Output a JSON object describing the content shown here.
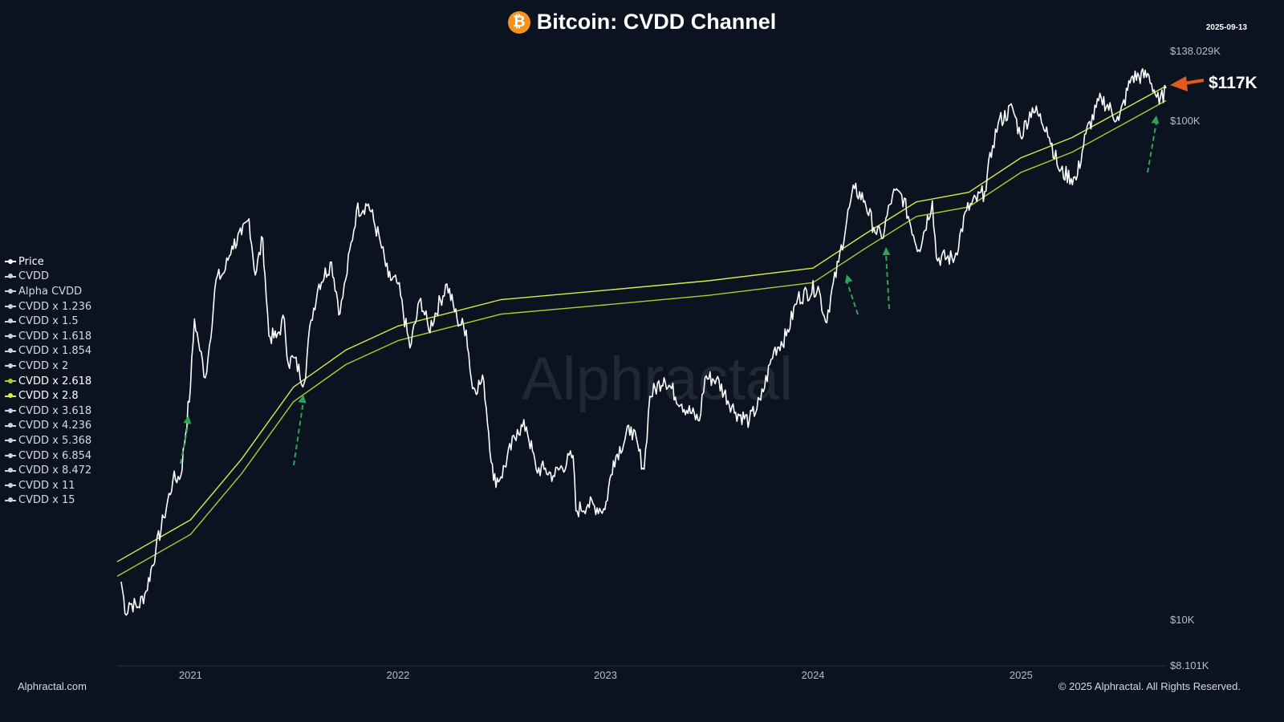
{
  "title": "Bitcoin: CVDD Channel",
  "date": "2025-09-13",
  "watermark": "Alphractal",
  "footer_left": "Alphractal.com",
  "footer_right": "© 2025 Alphractal. All Rights Reserved.",
  "callout": {
    "label": "$117K",
    "color": "#e0591f"
  },
  "colors": {
    "background": "#0b1320",
    "price": "#ffffff",
    "cvdd_2_618": "#a6d22e",
    "cvdd_2_8": "#d9ec4a",
    "annotation_arrows": "#2fa35a",
    "bitcoin": "#f7931a"
  },
  "legend": [
    {
      "label": "Price",
      "active": true,
      "color": "#ffffff"
    },
    {
      "label": "CVDD",
      "active": false
    },
    {
      "label": "Alpha CVDD",
      "active": false
    },
    {
      "label": "CVDD x 1.236",
      "active": false
    },
    {
      "label": "CVDD x 1.5",
      "active": false
    },
    {
      "label": "CVDD x 1.618",
      "active": false
    },
    {
      "label": "CVDD x 1.854",
      "active": false
    },
    {
      "label": "CVDD x 2",
      "active": false
    },
    {
      "label": "CVDD x 2.618",
      "active": true,
      "color": "#a6d22e"
    },
    {
      "label": "CVDD x 2.8",
      "active": true,
      "color": "#d9ec4a"
    },
    {
      "label": "CVDD x 3.618",
      "active": false
    },
    {
      "label": "CVDD x 4.236",
      "active": false
    },
    {
      "label": "CVDD x 5.368",
      "active": false
    },
    {
      "label": "CVDD x 6.854",
      "active": false
    },
    {
      "label": "CVDD x 8.472",
      "active": false
    },
    {
      "label": "CVDD x 11",
      "active": false
    },
    {
      "label": "CVDD x 15",
      "active": false
    }
  ],
  "chart_data": {
    "type": "line",
    "y_scale": "log",
    "ylim": [
      8101,
      138029
    ],
    "xlim": [
      "2020-08-25",
      "2025-09-13"
    ],
    "y_ticks": [
      {
        "value": 138029,
        "label": "$138.029K"
      },
      {
        "value": 100000,
        "label": "$100K"
      },
      {
        "value": 10000,
        "label": "$10K"
      },
      {
        "value": 8101,
        "label": "$8.101K"
      }
    ],
    "x_ticks": [
      "2021",
      "2022",
      "2023",
      "2024",
      "2025"
    ],
    "series": [
      {
        "name": "Price",
        "values": [
          [
            "2020-09-01",
            11900
          ],
          [
            "2020-09-10",
            10200
          ],
          [
            "2020-09-15",
            10800
          ],
          [
            "2020-10-01",
            10600
          ],
          [
            "2020-10-15",
            11400
          ],
          [
            "2020-11-01",
            13800
          ],
          [
            "2020-11-15",
            16000
          ],
          [
            "2020-12-01",
            19000
          ],
          [
            "2020-12-15",
            19400
          ],
          [
            "2021-01-01",
            29300
          ],
          [
            "2021-01-08",
            40000
          ],
          [
            "2021-01-15",
            36000
          ],
          [
            "2021-01-27",
            30500
          ],
          [
            "2021-02-01",
            33500
          ],
          [
            "2021-02-15",
            48000
          ],
          [
            "2021-03-01",
            49500
          ],
          [
            "2021-03-15",
            56000
          ],
          [
            "2021-04-01",
            59000
          ],
          [
            "2021-04-14",
            63500
          ],
          [
            "2021-04-25",
            49000
          ],
          [
            "2021-05-08",
            58000
          ],
          [
            "2021-05-12",
            49000
          ],
          [
            "2021-05-19",
            37000
          ],
          [
            "2021-06-01",
            36700
          ],
          [
            "2021-06-15",
            40000
          ],
          [
            "2021-06-22",
            32500
          ],
          [
            "2021-07-01",
            33500
          ],
          [
            "2021-07-20",
            29800
          ],
          [
            "2021-08-01",
            39800
          ],
          [
            "2021-08-15",
            47000
          ],
          [
            "2021-09-06",
            52000
          ],
          [
            "2021-09-21",
            41000
          ],
          [
            "2021-10-01",
            48000
          ],
          [
            "2021-10-20",
            66000
          ],
          [
            "2021-11-10",
            68000
          ],
          [
            "2021-12-01",
            57000
          ],
          [
            "2021-12-15",
            48500
          ],
          [
            "2022-01-01",
            47000
          ],
          [
            "2022-01-22",
            35000
          ],
          [
            "2022-02-10",
            44000
          ],
          [
            "2022-02-24",
            38000
          ],
          [
            "2022-03-28",
            47000
          ],
          [
            "2022-04-15",
            40000
          ],
          [
            "2022-05-01",
            38000
          ],
          [
            "2022-05-12",
            29000
          ],
          [
            "2022-06-01",
            30000
          ],
          [
            "2022-06-18",
            19000
          ],
          [
            "2022-07-01",
            19300
          ],
          [
            "2022-07-30",
            24000
          ],
          [
            "2022-08-15",
            24300
          ],
          [
            "2022-09-01",
            20000
          ],
          [
            "2022-09-15",
            20000
          ],
          [
            "2022-10-01",
            19400
          ],
          [
            "2022-11-05",
            21300
          ],
          [
            "2022-11-10",
            16500
          ],
          [
            "2022-12-01",
            17000
          ],
          [
            "2022-12-31",
            16600
          ],
          [
            "2023-01-15",
            20800
          ],
          [
            "2023-02-15",
            24300
          ],
          [
            "2023-03-10",
            20000
          ],
          [
            "2023-03-20",
            28000
          ],
          [
            "2023-04-14",
            30500
          ],
          [
            "2023-05-15",
            27000
          ],
          [
            "2023-06-15",
            25000
          ],
          [
            "2023-06-25",
            30500
          ],
          [
            "2023-07-15",
            30300
          ],
          [
            "2023-08-18",
            26000
          ],
          [
            "2023-09-11",
            25000
          ],
          [
            "2023-10-01",
            27500
          ],
          [
            "2023-10-24",
            34500
          ],
          [
            "2023-11-15",
            37000
          ],
          [
            "2023-12-05",
            44000
          ],
          [
            "2024-01-10",
            46500
          ],
          [
            "2024-01-23",
            39500
          ],
          [
            "2024-02-15",
            52000
          ],
          [
            "2024-03-05",
            67000
          ],
          [
            "2024-03-14",
            73000
          ],
          [
            "2024-04-01",
            69000
          ],
          [
            "2024-04-17",
            61000
          ],
          [
            "2024-05-01",
            58000
          ],
          [
            "2024-05-20",
            71000
          ],
          [
            "2024-06-05",
            71000
          ],
          [
            "2024-07-05",
            55000
          ],
          [
            "2024-07-29",
            69000
          ],
          [
            "2024-08-05",
            53000
          ],
          [
            "2024-09-06",
            53000
          ],
          [
            "2024-09-27",
            66000
          ],
          [
            "2024-10-29",
            72000
          ],
          [
            "2024-11-12",
            89000
          ],
          [
            "2024-11-22",
            99000
          ],
          [
            "2024-12-17",
            106000
          ],
          [
            "2024-12-31",
            93000
          ],
          [
            "2025-01-21",
            106000
          ],
          [
            "2025-02-15",
            97000
          ],
          [
            "2025-03-10",
            79000
          ],
          [
            "2025-04-08",
            76000
          ],
          [
            "2025-04-25",
            94000
          ],
          [
            "2025-05-22",
            111000
          ],
          [
            "2025-06-22",
            100000
          ],
          [
            "2025-07-14",
            122000
          ],
          [
            "2025-08-14",
            123000
          ],
          [
            "2025-09-01",
            108000
          ],
          [
            "2025-09-13",
            116000
          ]
        ]
      },
      {
        "name": "CVDD x 2.618",
        "values": [
          [
            "2020-08-25",
            12200
          ],
          [
            "2021-01-01",
            14800
          ],
          [
            "2021-04-01",
            19600
          ],
          [
            "2021-07-01",
            27300
          ],
          [
            "2021-10-01",
            32400
          ],
          [
            "2022-01-01",
            36200
          ],
          [
            "2022-07-01",
            40900
          ],
          [
            "2023-01-01",
            42700
          ],
          [
            "2023-07-01",
            44600
          ],
          [
            "2024-01-01",
            47300
          ],
          [
            "2024-04-01",
            55300
          ],
          [
            "2024-07-01",
            64200
          ],
          [
            "2024-10-01",
            67100
          ],
          [
            "2025-01-01",
            78700
          ],
          [
            "2025-04-01",
            86400
          ],
          [
            "2025-07-01",
            98500
          ],
          [
            "2025-09-13",
            109600
          ]
        ]
      },
      {
        "name": "CVDD x 2.8",
        "values": [
          [
            "2020-08-25",
            13050
          ],
          [
            "2021-01-01",
            15830
          ],
          [
            "2021-04-01",
            20960
          ],
          [
            "2021-07-01",
            29200
          ],
          [
            "2021-10-01",
            34650
          ],
          [
            "2022-01-01",
            38720
          ],
          [
            "2022-07-01",
            43740
          ],
          [
            "2023-01-01",
            45670
          ],
          [
            "2023-07-01",
            47700
          ],
          [
            "2024-01-01",
            50590
          ],
          [
            "2024-04-01",
            59140
          ],
          [
            "2024-07-01",
            68660
          ],
          [
            "2024-10-01",
            71770
          ],
          [
            "2025-01-01",
            84170
          ],
          [
            "2025-04-01",
            92400
          ],
          [
            "2025-07-01",
            105350
          ],
          [
            "2025-09-13",
            117200
          ]
        ]
      }
    ]
  }
}
